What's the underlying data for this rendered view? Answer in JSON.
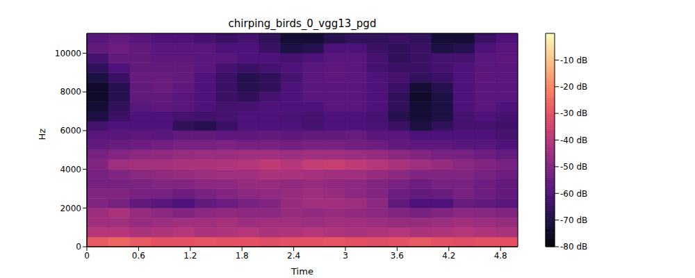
{
  "chart_data": {
    "type": "heatmap",
    "title": "chirping_birds_0_vgg13_pgd",
    "x_label": "Time",
    "y_label": "Hz",
    "xlim": [
      0,
      5
    ],
    "ylim": [
      0,
      11025
    ],
    "xticks": [
      0,
      0.6,
      1.2,
      1.8,
      2.4,
      3,
      3.6,
      4.2,
      4.8
    ],
    "yticks": [
      0,
      2000,
      4000,
      6000,
      8000,
      10000
    ],
    "grid": false,
    "x_bins": [
      0,
      0.25,
      0.5,
      0.75,
      1,
      1.25,
      1.5,
      1.75,
      2,
      2.25,
      2.5,
      2.75,
      3,
      3.25,
      3.5,
      3.75,
      4,
      4.25,
      4.5,
      4.75,
      5
    ],
    "y_bins": [
      0,
      500,
      1000,
      1500,
      2000,
      2500,
      3000,
      3500,
      4000,
      4500,
      5000,
      5500,
      6000,
      6500,
      7000,
      7500,
      8000,
      8500,
      9000,
      9500,
      10000,
      10500,
      11025
    ],
    "cells": [
      [
        -28,
        -26,
        -28,
        -30,
        -30,
        -29,
        -30,
        -30,
        -31,
        -30,
        -30,
        -29,
        -30,
        -31,
        -30,
        -28,
        -30,
        -31,
        -30,
        -30
      ],
      [
        -40,
        -40,
        -42,
        -41,
        -40,
        -42,
        -41,
        -40,
        -42,
        -41,
        -40,
        -41,
        -42,
        -41,
        -40,
        -42,
        -41,
        -40,
        -41,
        -42
      ],
      [
        -44,
        -44,
        -46,
        -45,
        -44,
        -44,
        -43,
        -45,
        -44,
        -44,
        -45,
        -44,
        -44,
        -45,
        -46,
        -46,
        -45,
        -44,
        -45,
        -46
      ],
      [
        -45,
        -42,
        -46,
        -48,
        -50,
        -48,
        -47,
        -48,
        -48,
        -46,
        -47,
        -46,
        -47,
        -48,
        -50,
        -52,
        -50,
        -48,
        -49,
        -50
      ],
      [
        -50,
        -52,
        -56,
        -58,
        -60,
        -56,
        -54,
        -52,
        -50,
        -46,
        -44,
        -44,
        -45,
        -48,
        -56,
        -60,
        -60,
        -55,
        -56,
        -58
      ],
      [
        -50,
        -50,
        -52,
        -52,
        -54,
        -52,
        -50,
        -48,
        -47,
        -46,
        -45,
        -46,
        -48,
        -50,
        -54,
        -56,
        -55,
        -52,
        -54,
        -56
      ],
      [
        -52,
        -52,
        -51,
        -50,
        -50,
        -48,
        -48,
        -46,
        -46,
        -47,
        -46,
        -47,
        -48,
        -50,
        -52,
        -54,
        -52,
        -52,
        -54,
        -56
      ],
      [
        -52,
        -50,
        -48,
        -47,
        -46,
        -45,
        -44,
        -44,
        -42,
        -42,
        -43,
        -44,
        -44,
        -46,
        -48,
        -50,
        -50,
        -50,
        -52,
        -54
      ],
      [
        -50,
        -44,
        -43,
        -43,
        -42,
        -42,
        -41,
        -40,
        -38,
        -40,
        -37,
        -36,
        -38,
        -40,
        -42,
        -44,
        -46,
        -48,
        -50,
        -52
      ],
      [
        -52,
        -50,
        -48,
        -47,
        -46,
        -45,
        -45,
        -44,
        -44,
        -45,
        -44,
        -44,
        -45,
        -46,
        -48,
        -50,
        -52,
        -52,
        -54,
        -56
      ],
      [
        -56,
        -55,
        -54,
        -53,
        -52,
        -52,
        -51,
        -52,
        -52,
        -53,
        -52,
        -52,
        -53,
        -54,
        -56,
        -57,
        -57,
        -58,
        -58,
        -60
      ],
      [
        -58,
        -58,
        -57,
        -58,
        -56,
        -56,
        -57,
        -57,
        -56,
        -57,
        -56,
        -56,
        -55,
        -58,
        -58,
        -60,
        -60,
        -60,
        -60,
        -62
      ],
      [
        -62,
        -60,
        -60,
        -60,
        -66,
        -68,
        -64,
        -60,
        -60,
        -60,
        -62,
        -60,
        -60,
        -61,
        -64,
        -70,
        -66,
        -62,
        -62,
        -63
      ],
      [
        -70,
        -64,
        -60,
        -60,
        -62,
        -63,
        -62,
        -60,
        -60,
        -61,
        -62,
        -60,
        -60,
        -62,
        -68,
        -72,
        -70,
        -62,
        -60,
        -62
      ],
      [
        -72,
        -66,
        -58,
        -57,
        -58,
        -60,
        -62,
        -62,
        -60,
        -60,
        -60,
        -58,
        -58,
        -60,
        -66,
        -72,
        -70,
        -60,
        -58,
        -60
      ],
      [
        -74,
        -68,
        -56,
        -56,
        -58,
        -60,
        -64,
        -66,
        -62,
        -60,
        -58,
        -58,
        -58,
        -60,
        -66,
        -74,
        -70,
        -60,
        -58,
        -58
      ],
      [
        -74,
        -68,
        -56,
        -55,
        -57,
        -60,
        -64,
        -68,
        -66,
        -60,
        -58,
        -58,
        -58,
        -60,
        -64,
        -72,
        -68,
        -60,
        -58,
        -58
      ],
      [
        -70,
        -64,
        -55,
        -55,
        -56,
        -60,
        -64,
        -68,
        -66,
        -62,
        -58,
        -57,
        -58,
        -60,
        -62,
        -66,
        -64,
        -60,
        -57,
        -58
      ],
      [
        -66,
        -60,
        -56,
        -56,
        -56,
        -58,
        -62,
        -64,
        -62,
        -60,
        -58,
        -57,
        -58,
        -62,
        -64,
        -64,
        -62,
        -60,
        -58,
        -58
      ],
      [
        -62,
        -56,
        -56,
        -57,
        -57,
        -58,
        -58,
        -60,
        -60,
        -62,
        -60,
        -58,
        -58,
        -62,
        -66,
        -64,
        -62,
        -62,
        -58,
        -57
      ],
      [
        -56,
        -54,
        -56,
        -58,
        -58,
        -58,
        -60,
        -60,
        -64,
        -70,
        -68,
        -60,
        -60,
        -64,
        -66,
        -64,
        -70,
        -68,
        -60,
        -58
      ],
      [
        -58,
        -56,
        -58,
        -60,
        -60,
        -62,
        -64,
        -62,
        -66,
        -72,
        -72,
        -68,
        -66,
        -66,
        -64,
        -66,
        -72,
        -72,
        -64,
        -60
      ]
    ],
    "colorbar": {
      "range": [
        -80,
        0
      ],
      "ticks": [
        {
          "value": -10,
          "label": "-10 dB"
        },
        {
          "value": -20,
          "label": "-20 dB"
        },
        {
          "value": -30,
          "label": "-30 dB"
        },
        {
          "value": -40,
          "label": "-40 dB"
        },
        {
          "value": -50,
          "label": "-50 dB"
        },
        {
          "value": -60,
          "label": "-60 dB"
        },
        {
          "value": -70,
          "label": "-70 dB"
        },
        {
          "value": -80,
          "label": "-80 dB"
        }
      ]
    }
  }
}
